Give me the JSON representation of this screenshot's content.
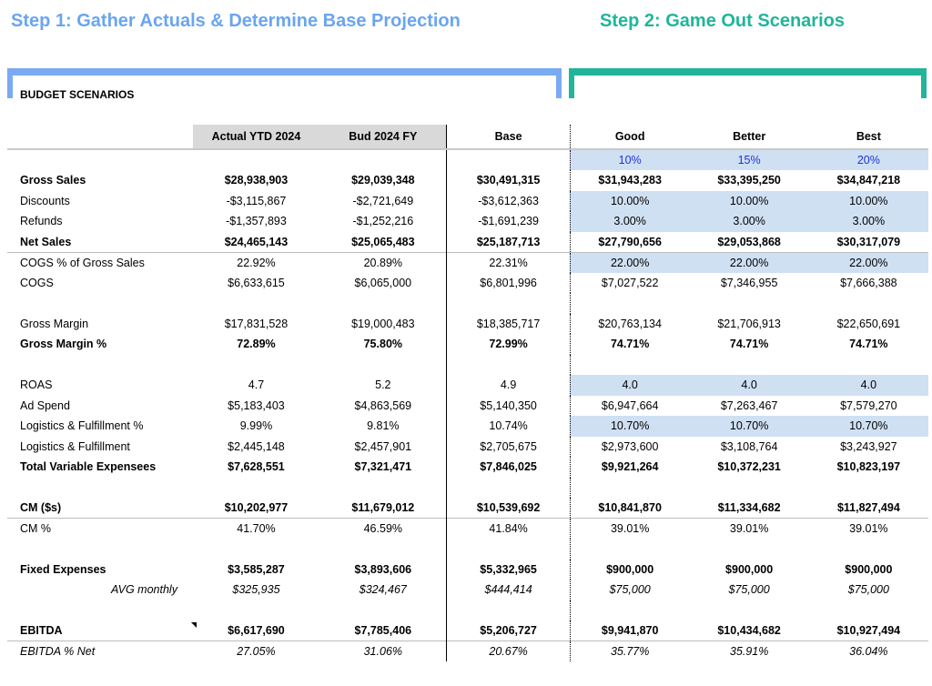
{
  "step1_title": "Step 1: Gather Actuals & Determine Base Projection",
  "step2_title": "Step 2: Game Out Scenarios",
  "section_label": "BUDGET SCENARIOS",
  "headers": [
    "Actual YTD 2024",
    "Bud 2024 FY",
    "Base",
    "Good",
    "Better",
    "Best"
  ],
  "scenario_growth": [
    "10%",
    "15%",
    "20%"
  ],
  "rows": [
    {
      "label": "Gross Sales",
      "values": [
        "$28,938,903",
        "$29,039,348",
        "$30,491,315",
        "$31,943,283",
        "$33,395,250",
        "$34,847,218"
      ]
    },
    {
      "label": "Discounts",
      "values": [
        "-$3,115,867",
        "-$2,721,649",
        "-$3,612,363",
        "10.00%",
        "10.00%",
        "10.00%"
      ]
    },
    {
      "label": "Refunds",
      "values": [
        "-$1,357,893",
        "-$1,252,216",
        "-$1,691,239",
        "3.00%",
        "3.00%",
        "3.00%"
      ]
    },
    {
      "label": "Net Sales",
      "values": [
        "$24,465,143",
        "$25,065,483",
        "$25,187,713",
        "$27,790,656",
        "$29,053,868",
        "$30,317,079"
      ]
    },
    {
      "label": "COGS % of Gross Sales",
      "values": [
        "22.92%",
        "20.89%",
        "22.31%",
        "22.00%",
        "22.00%",
        "22.00%"
      ]
    },
    {
      "label": "COGS",
      "values": [
        "$6,633,615",
        "$6,065,000",
        "$6,801,996",
        "$7,027,522",
        "$7,346,955",
        "$7,666,388"
      ]
    },
    {
      "label": "Gross Margin",
      "values": [
        "$17,831,528",
        "$19,000,483",
        "$18,385,717",
        "$20,763,134",
        "$21,706,913",
        "$22,650,691"
      ]
    },
    {
      "label": "Gross Margin %",
      "values": [
        "72.89%",
        "75.80%",
        "72.99%",
        "74.71%",
        "74.71%",
        "74.71%"
      ]
    },
    {
      "label": "ROAS",
      "values": [
        "4.7",
        "5.2",
        "4.9",
        "4.0",
        "4.0",
        "4.0"
      ]
    },
    {
      "label": "Ad Spend",
      "values": [
        "$5,183,403",
        "$4,863,569",
        "$5,140,350",
        "$6,947,664",
        "$7,263,467",
        "$7,579,270"
      ]
    },
    {
      "label": "Logistics & Fulfillment %",
      "values": [
        "9.99%",
        "9.81%",
        "10.74%",
        "10.70%",
        "10.70%",
        "10.70%"
      ]
    },
    {
      "label": "Logistics & Fulfillment",
      "values": [
        "$2,445,148",
        "$2,457,901",
        "$2,705,675",
        "$2,973,600",
        "$3,108,764",
        "$3,243,927"
      ]
    },
    {
      "label": "Total Variable Expensees",
      "values": [
        "$7,628,551",
        "$7,321,471",
        "$7,846,025",
        "$9,921,264",
        "$10,372,231",
        "$10,823,197"
      ]
    },
    {
      "label": "CM ($s)",
      "values": [
        "$10,202,977",
        "$11,679,012",
        "$10,539,692",
        "$10,841,870",
        "$11,334,682",
        "$11,827,494"
      ]
    },
    {
      "label": "CM %",
      "values": [
        "41.70%",
        "46.59%",
        "41.84%",
        "39.01%",
        "39.01%",
        "39.01%"
      ]
    },
    {
      "label": "Fixed Expenses",
      "values": [
        "$3,585,287",
        "$3,893,606",
        "$5,332,965",
        "$900,000",
        "$900,000",
        "$900,000"
      ]
    },
    {
      "label": "AVG monthly",
      "values": [
        "$325,935",
        "$324,467",
        "$444,414",
        "$75,000",
        "$75,000",
        "$75,000"
      ]
    },
    {
      "label": "EBITDA",
      "values": [
        "$6,617,690",
        "$7,785,406",
        "$5,206,727",
        "$9,941,870",
        "$10,434,682",
        "$10,927,494"
      ]
    },
    {
      "label": "EBITDA % Net",
      "values": [
        "27.05%",
        "31.06%",
        "20.67%",
        "35.77%",
        "35.91%",
        "36.04%"
      ]
    }
  ]
}
